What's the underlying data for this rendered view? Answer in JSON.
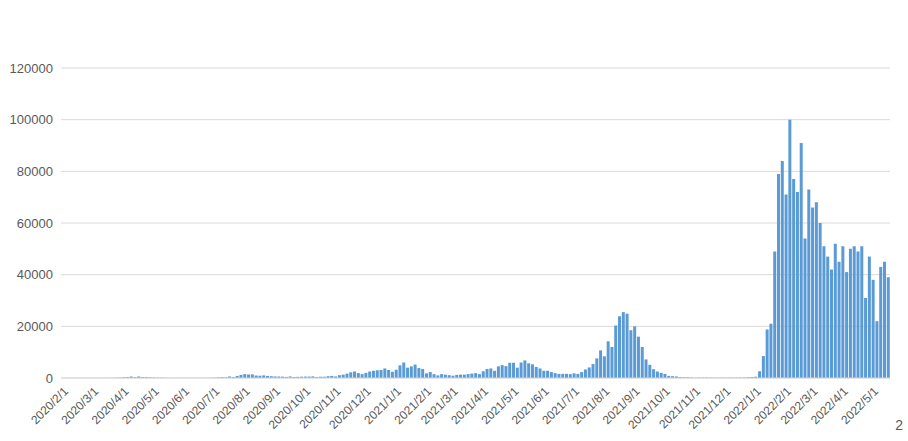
{
  "chart_data": {
    "type": "bar",
    "color": "#5b9bd5",
    "grid": true,
    "annotations": [
      "2"
    ],
    "ylim": [
      0,
      120000
    ],
    "yticks": [
      0,
      20000,
      40000,
      60000,
      80000,
      100000,
      120000
    ],
    "categories": [
      "2020/2/1",
      null,
      null,
      null,
      null,
      null,
      null,
      null,
      "2020/3/1",
      null,
      null,
      null,
      null,
      null,
      null,
      null,
      "2020/4/1",
      null,
      null,
      null,
      null,
      null,
      null,
      null,
      "2020/5/1",
      null,
      null,
      null,
      null,
      null,
      null,
      null,
      "2020/6/1",
      null,
      null,
      null,
      null,
      null,
      null,
      null,
      "2020/7/1",
      null,
      null,
      null,
      null,
      null,
      null,
      null,
      "2020/8/1",
      null,
      null,
      null,
      null,
      null,
      null,
      null,
      "2020/9/1",
      null,
      null,
      null,
      null,
      null,
      null,
      null,
      "2020/10/1",
      null,
      null,
      null,
      null,
      null,
      null,
      null,
      "2020/11/1",
      null,
      null,
      null,
      null,
      null,
      null,
      null,
      "2020/12/1",
      null,
      null,
      null,
      null,
      null,
      null,
      null,
      "2021/1/1",
      null,
      null,
      null,
      null,
      null,
      null,
      null,
      "2021/2/1",
      null,
      null,
      null,
      null,
      null,
      null,
      "2021/3/1",
      null,
      null,
      null,
      null,
      null,
      null,
      null,
      "2021/4/1",
      null,
      null,
      null,
      null,
      null,
      null,
      null,
      "2021/5/1",
      null,
      null,
      null,
      null,
      null,
      null,
      null,
      "2021/6/1",
      null,
      null,
      null,
      null,
      null,
      null,
      null,
      "2021/7/1",
      null,
      null,
      null,
      null,
      null,
      null,
      null,
      "2021/8/1",
      null,
      null,
      null,
      null,
      null,
      null,
      null,
      "2021/9/1",
      null,
      null,
      null,
      null,
      null,
      null,
      null,
      "2021/10/1",
      null,
      null,
      null,
      null,
      null,
      null,
      null,
      "2021/11/1",
      null,
      null,
      null,
      null,
      null,
      null,
      null,
      "2021/12/1",
      null,
      null,
      null,
      null,
      null,
      null,
      null,
      "2022/1/1",
      null,
      null,
      null,
      null,
      null,
      null,
      null,
      "2022/2/1",
      null,
      null,
      null,
      null,
      null,
      null,
      "2022/3/1",
      null,
      null,
      null,
      null,
      null,
      null,
      null,
      "2022/4/1",
      null,
      null,
      null,
      null,
      null,
      null,
      null,
      "2022/5/1",
      null,
      null,
      null,
      null
    ],
    "values": [
      0,
      1,
      0,
      3,
      7,
      15,
      12,
      20,
      15,
      30,
      25,
      50,
      40,
      50,
      90,
      170,
      300,
      380,
      570,
      330,
      580,
      350,
      350,
      250,
      170,
      100,
      110,
      60,
      30,
      25,
      30,
      40,
      30,
      40,
      20,
      50,
      40,
      55,
      50,
      70,
      120,
      250,
      350,
      300,
      590,
      400,
      800,
      1200,
      1500,
      1350,
      1400,
      1000,
      900,
      1020,
      800,
      700,
      600,
      580,
      510,
      430,
      600,
      400,
      450,
      500,
      550,
      560,
      630,
      400,
      500,
      500,
      700,
      800,
      600,
      1100,
      1300,
      1700,
      2200,
      2500,
      1900,
      1500,
      2000,
      2500,
      2800,
      3000,
      3100,
      3700,
      3100,
      2400,
      3200,
      4900,
      6000,
      4000,
      4500,
      5200,
      3850,
      3500,
      1800,
      2300,
      1500,
      1000,
      1500,
      1300,
      1100,
      900,
      1200,
      1300,
      1300,
      1500,
      1700,
      1900,
      1500,
      2600,
      3500,
      3700,
      2800,
      4500,
      5000,
      4600,
      5900,
      5900,
      4000,
      6000,
      6800,
      5700,
      5300,
      4300,
      3700,
      2800,
      2800,
      2300,
      1900,
      1600,
      1600,
      1600,
      1500,
      1800,
      1600,
      2300,
      3300,
      4100,
      5400,
      7600,
      10700,
      8400,
      14200,
      12000,
      20300,
      23900,
      25500,
      24900,
      18500,
      20000,
      16000,
      12000,
      7200,
      5100,
      3400,
      2500,
      2000,
      1600,
      800,
      700,
      600,
      400,
      300,
      280,
      200,
      90,
      160,
      150,
      190,
      130,
      120,
      100,
      140,
      120,
      140,
      140,
      130,
      180,
      200,
      300,
      400,
      500,
      2600,
      8500,
      18800,
      21000,
      49000,
      79000,
      84000,
      71000,
      100000,
      77000,
      72000,
      91000,
      54000,
      73000,
      66000,
      68000,
      60000,
      51000,
      47000,
      42000,
      52000,
      45000,
      51000,
      41000,
      50000,
      51000,
      49000,
      51000,
      31000,
      47000,
      38000,
      22000,
      43000,
      45000,
      39000
    ]
  }
}
